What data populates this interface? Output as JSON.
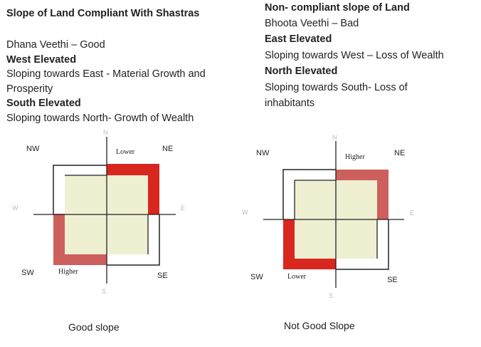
{
  "left": {
    "heading": "Slope of Land Compliant With Shastras",
    "line1": "Dhana Veethi – Good",
    "line2": "West Elevated",
    "line3": "Sloping towards East - Material Growth and",
    "line4": "Prosperity",
    "line5": "South Elevated",
    "line6": "Sloping towards North- Growth of Wealth"
  },
  "right": {
    "heading": "Non- compliant slope of Land",
    "line1": "Bhoota Veethi – Bad",
    "line2": "East Elevated",
    "line3": "Sloping towards West – Loss of Wealth",
    "line4": "North Elevated",
    "line5": "Sloping towards South- Loss of",
    "line6": "inhabitants"
  },
  "diagram_good": {
    "nw": "NW",
    "ne": "NE",
    "sw": "SW",
    "se": "SE",
    "n": "N",
    "s": "S",
    "e": "E",
    "w": "W",
    "top_label": "Lower",
    "bottom_label": "Higher",
    "caption": "Good slope"
  },
  "diagram_bad": {
    "nw": "NW",
    "ne": "NE",
    "sw": "SW",
    "se": "SE",
    "n": "N",
    "s": "S",
    "e": "E",
    "w": "W",
    "top_label": "Higher",
    "bottom_label": "Lower",
    "caption": "Not Good Slope"
  },
  "colors": {
    "plot_fill": "#efefd2",
    "red_strong": "#d9261f",
    "red_muted": "#cd5f5c",
    "line": "#222222"
  }
}
